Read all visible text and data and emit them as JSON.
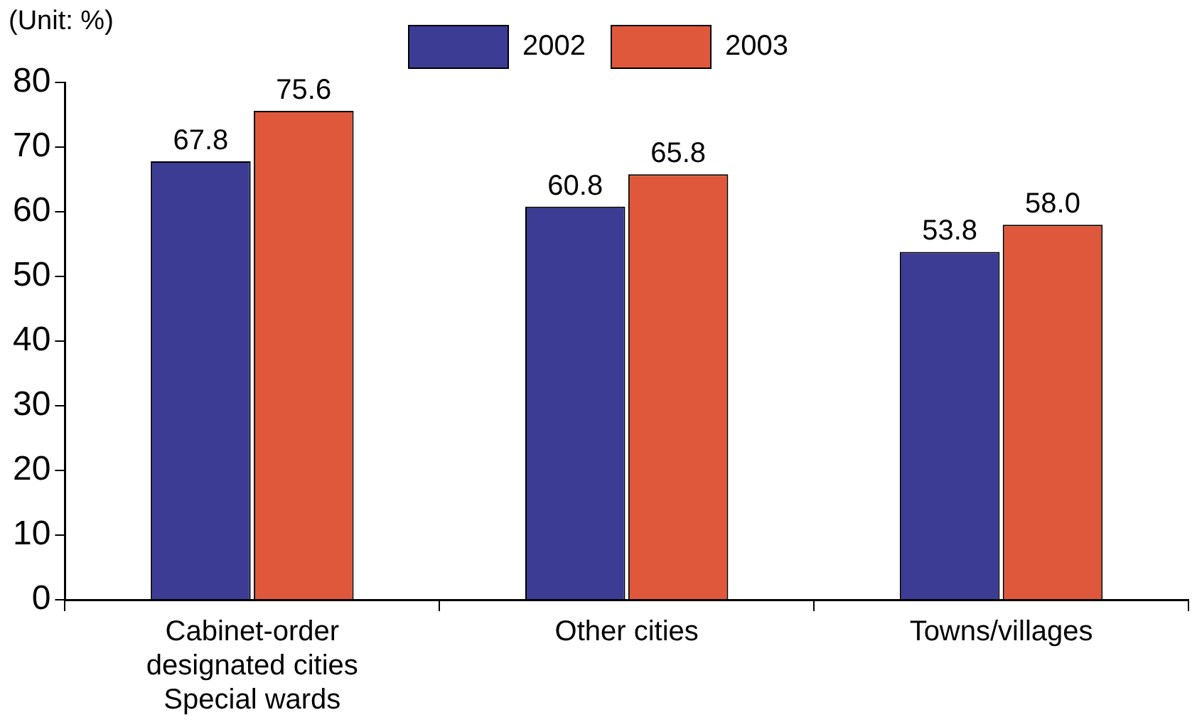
{
  "chart_data": {
    "type": "bar",
    "annotations": [
      "(Unit: %)"
    ],
    "categories": [
      "Cabinet-order\ndesignated cities\nSpecial wards",
      "Other cities",
      "Towns/villages"
    ],
    "series": [
      {
        "name": "2002",
        "color": "#3c3c94",
        "values": [
          67.8,
          60.8,
          53.8
        ],
        "value_labels": [
          "67.8",
          "60.8",
          "53.8"
        ]
      },
      {
        "name": "2003",
        "color": "#e0583c",
        "values": [
          75.6,
          65.8,
          58.0
        ],
        "value_labels": [
          "75.6",
          "65.8",
          "58.0"
        ]
      }
    ],
    "ylim": [
      0,
      80
    ],
    "yticks": [
      0,
      10,
      20,
      30,
      40,
      50,
      60,
      70,
      80
    ],
    "grid": false,
    "legend": "top"
  }
}
